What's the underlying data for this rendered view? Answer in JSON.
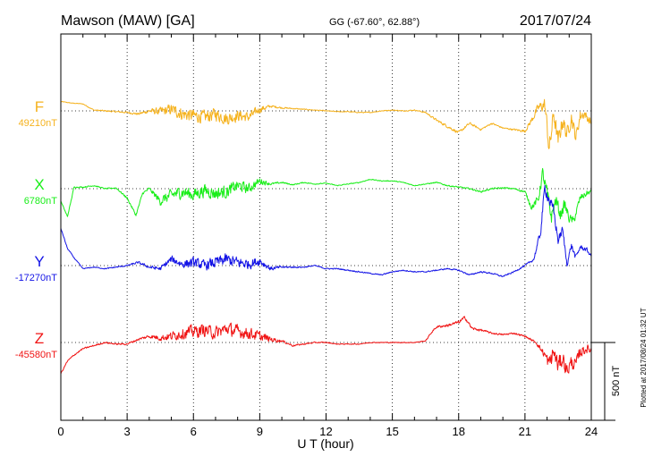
{
  "header": {
    "station": "Mawson (MAW)  [GA]",
    "coords": "GG (-67.60°,  62.88°)",
    "date": "2017/07/24"
  },
  "plotted_note": "Plotted at 2017/08/24 01:32 UT",
  "scale_label": "500 nT",
  "chart_data": {
    "type": "line",
    "xlabel": "U T (hour)",
    "xlim": [
      0,
      24
    ],
    "xticks": [
      "0",
      "3",
      "6",
      "9",
      "12",
      "15",
      "18",
      "21",
      "24"
    ],
    "scale_nT": 500,
    "series": [
      {
        "name": "F",
        "baseline_label": "49210nT",
        "color": "#f5b21e",
        "x": [
          0,
          0.5,
          1,
          1.5,
          2,
          2.5,
          3,
          3.5,
          4,
          4.5,
          5,
          5.5,
          6,
          6.5,
          7,
          7.5,
          8,
          8.5,
          9,
          9.5,
          10,
          10.5,
          11,
          11.5,
          12,
          12.5,
          13,
          13.5,
          14,
          14.5,
          15,
          15.5,
          16,
          16.5,
          17,
          17.5,
          18,
          18.5,
          19,
          19.5,
          20,
          20.5,
          21,
          21.3,
          21.6,
          21.9,
          22.1,
          22.3,
          22.5,
          22.7,
          22.9,
          23.1,
          23.3,
          23.5,
          23.7,
          24
        ],
        "values": [
          60,
          50,
          45,
          5,
          0,
          -5,
          -10,
          -20,
          0,
          -5,
          10,
          -20,
          -30,
          -40,
          -20,
          -50,
          -30,
          -40,
          10,
          30,
          20,
          15,
          10,
          5,
          0,
          -5,
          -5,
          -10,
          -10,
          0,
          5,
          0,
          5,
          -10,
          -60,
          -100,
          -140,
          -80,
          -120,
          -80,
          -110,
          -120,
          -130,
          -60,
          20,
          40,
          -250,
          -20,
          -200,
          -60,
          -150,
          -40,
          -170,
          -30,
          -20,
          -80
        ],
        "noise": [
          2,
          2,
          3,
          4,
          5,
          5,
          6,
          8,
          14,
          30,
          40,
          45,
          45,
          45,
          45,
          45,
          40,
          35,
          25,
          8,
          6,
          4,
          3,
          3,
          3,
          3,
          3,
          3,
          3,
          3,
          3,
          3,
          3,
          5,
          8,
          10,
          10,
          8,
          6,
          6,
          5,
          6,
          10,
          20,
          30,
          50,
          80,
          60,
          60,
          60,
          50,
          50,
          40,
          40,
          30,
          30
        ]
      },
      {
        "name": "X",
        "baseline_label": "6780nT",
        "color": "#18ee18",
        "x": [
          0,
          0.3,
          0.6,
          1,
          1.5,
          2,
          2.5,
          3,
          3.4,
          3.7,
          4,
          4.5,
          5,
          5.5,
          6,
          6.5,
          7,
          7.5,
          8,
          8.5,
          9,
          9.5,
          10,
          10.5,
          11,
          11.5,
          12,
          12.5,
          13,
          13.5,
          14,
          14.5,
          15,
          15.5,
          16,
          16.5,
          17,
          17.5,
          18,
          18.5,
          19,
          19.5,
          20,
          20.5,
          21,
          21.3,
          21.6,
          21.8,
          22.0,
          22.2,
          22.4,
          22.6,
          22.8,
          23.0,
          23.2,
          23.5,
          23.8,
          24
        ],
        "values": [
          -80,
          -180,
          10,
          10,
          20,
          0,
          5,
          -60,
          -170,
          -30,
          0,
          -80,
          -40,
          -20,
          -40,
          -10,
          -30,
          -20,
          20,
          0,
          50,
          30,
          40,
          25,
          40,
          30,
          35,
          20,
          30,
          40,
          60,
          50,
          50,
          40,
          20,
          30,
          40,
          20,
          10,
          0,
          -20,
          0,
          5,
          0,
          -20,
          -120,
          -70,
          100,
          -40,
          -180,
          -70,
          -170,
          -100,
          -190,
          -210,
          -60,
          -30,
          -20
        ],
        "noise": [
          2,
          5,
          4,
          4,
          4,
          4,
          4,
          8,
          10,
          8,
          10,
          30,
          40,
          45,
          45,
          45,
          45,
          45,
          40,
          35,
          25,
          8,
          6,
          4,
          4,
          3,
          3,
          3,
          3,
          3,
          3,
          3,
          3,
          3,
          3,
          3,
          4,
          5,
          5,
          5,
          5,
          5,
          5,
          5,
          8,
          20,
          30,
          40,
          60,
          50,
          50,
          40,
          40,
          30,
          30,
          25,
          20,
          15
        ]
      },
      {
        "name": "Y",
        "baseline_label": "-17270nT",
        "color": "#1414e6",
        "x": [
          0,
          0.3,
          0.6,
          1,
          1.5,
          2,
          2.5,
          3,
          3.5,
          4,
          4.5,
          5,
          5.5,
          6,
          6.5,
          7,
          7.5,
          8,
          8.5,
          9,
          9.5,
          10,
          10.5,
          11,
          11.5,
          12,
          12.5,
          13,
          13.5,
          14,
          14.5,
          15,
          15.5,
          16,
          16.5,
          17,
          17.5,
          18,
          18.5,
          19,
          19.5,
          20,
          20.5,
          21,
          21.4,
          21.7,
          21.9,
          22.1,
          22.3,
          22.5,
          22.7,
          22.9,
          23.1,
          23.3,
          23.5,
          23.8,
          24
        ],
        "values": [
          240,
          110,
          50,
          -20,
          -10,
          -20,
          -10,
          0,
          20,
          -10,
          -20,
          40,
          10,
          20,
          0,
          20,
          40,
          20,
          10,
          30,
          -20,
          -10,
          -10,
          -10,
          0,
          -20,
          -20,
          -30,
          -40,
          -50,
          -60,
          -40,
          -30,
          -40,
          -40,
          -30,
          -20,
          -30,
          -60,
          -40,
          -50,
          -70,
          -40,
          0,
          40,
          210,
          500,
          420,
          350,
          160,
          230,
          10,
          130,
          50,
          120,
          100,
          60
        ],
        "noise": [
          3,
          4,
          4,
          3,
          3,
          4,
          4,
          5,
          8,
          10,
          15,
          25,
          30,
          35,
          35,
          40,
          40,
          40,
          35,
          30,
          15,
          8,
          6,
          4,
          4,
          4,
          4,
          4,
          4,
          4,
          4,
          4,
          4,
          4,
          4,
          4,
          4,
          5,
          5,
          5,
          5,
          5,
          5,
          6,
          10,
          30,
          40,
          40,
          40,
          30,
          30,
          20,
          20,
          20,
          15,
          15,
          10
        ]
      },
      {
        "name": "Z",
        "baseline_label": "-45580nT",
        "color": "#f01414",
        "x": [
          0,
          0.3,
          0.6,
          1,
          1.5,
          2,
          2.5,
          3,
          3.5,
          4,
          4.5,
          5,
          5.5,
          6,
          6.5,
          7,
          7.5,
          8,
          8.5,
          9,
          9.5,
          10,
          10.5,
          11,
          11.5,
          12,
          12.5,
          13,
          13.5,
          14,
          14.5,
          15,
          15.5,
          16,
          16.5,
          16.8,
          17,
          17.5,
          18,
          18.3,
          18.6,
          19,
          19.5,
          20,
          20.5,
          21,
          21.5,
          21.9,
          22.1,
          22.3,
          22.5,
          22.7,
          22.9,
          23.1,
          23.3,
          23.5,
          23.8,
          24
        ],
        "values": [
          -200,
          -120,
          -80,
          -40,
          -20,
          0,
          -10,
          -10,
          20,
          40,
          30,
          40,
          60,
          70,
          80,
          60,
          90,
          70,
          60,
          40,
          20,
          10,
          -20,
          -10,
          0,
          0,
          -10,
          -10,
          -10,
          0,
          0,
          0,
          0,
          0,
          10,
          70,
          100,
          110,
          130,
          160,
          90,
          80,
          60,
          50,
          60,
          40,
          0,
          -80,
          -140,
          -60,
          -150,
          -100,
          -180,
          -130,
          -140,
          -60,
          -40,
          -50
        ],
        "noise": [
          4,
          6,
          6,
          5,
          5,
          5,
          5,
          6,
          8,
          12,
          20,
          30,
          40,
          45,
          45,
          45,
          45,
          45,
          40,
          35,
          20,
          8,
          6,
          5,
          4,
          4,
          3,
          3,
          3,
          3,
          3,
          3,
          3,
          3,
          3,
          6,
          8,
          10,
          12,
          14,
          10,
          8,
          6,
          6,
          6,
          6,
          8,
          30,
          60,
          60,
          60,
          60,
          50,
          50,
          40,
          40,
          30,
          25
        ]
      }
    ]
  }
}
